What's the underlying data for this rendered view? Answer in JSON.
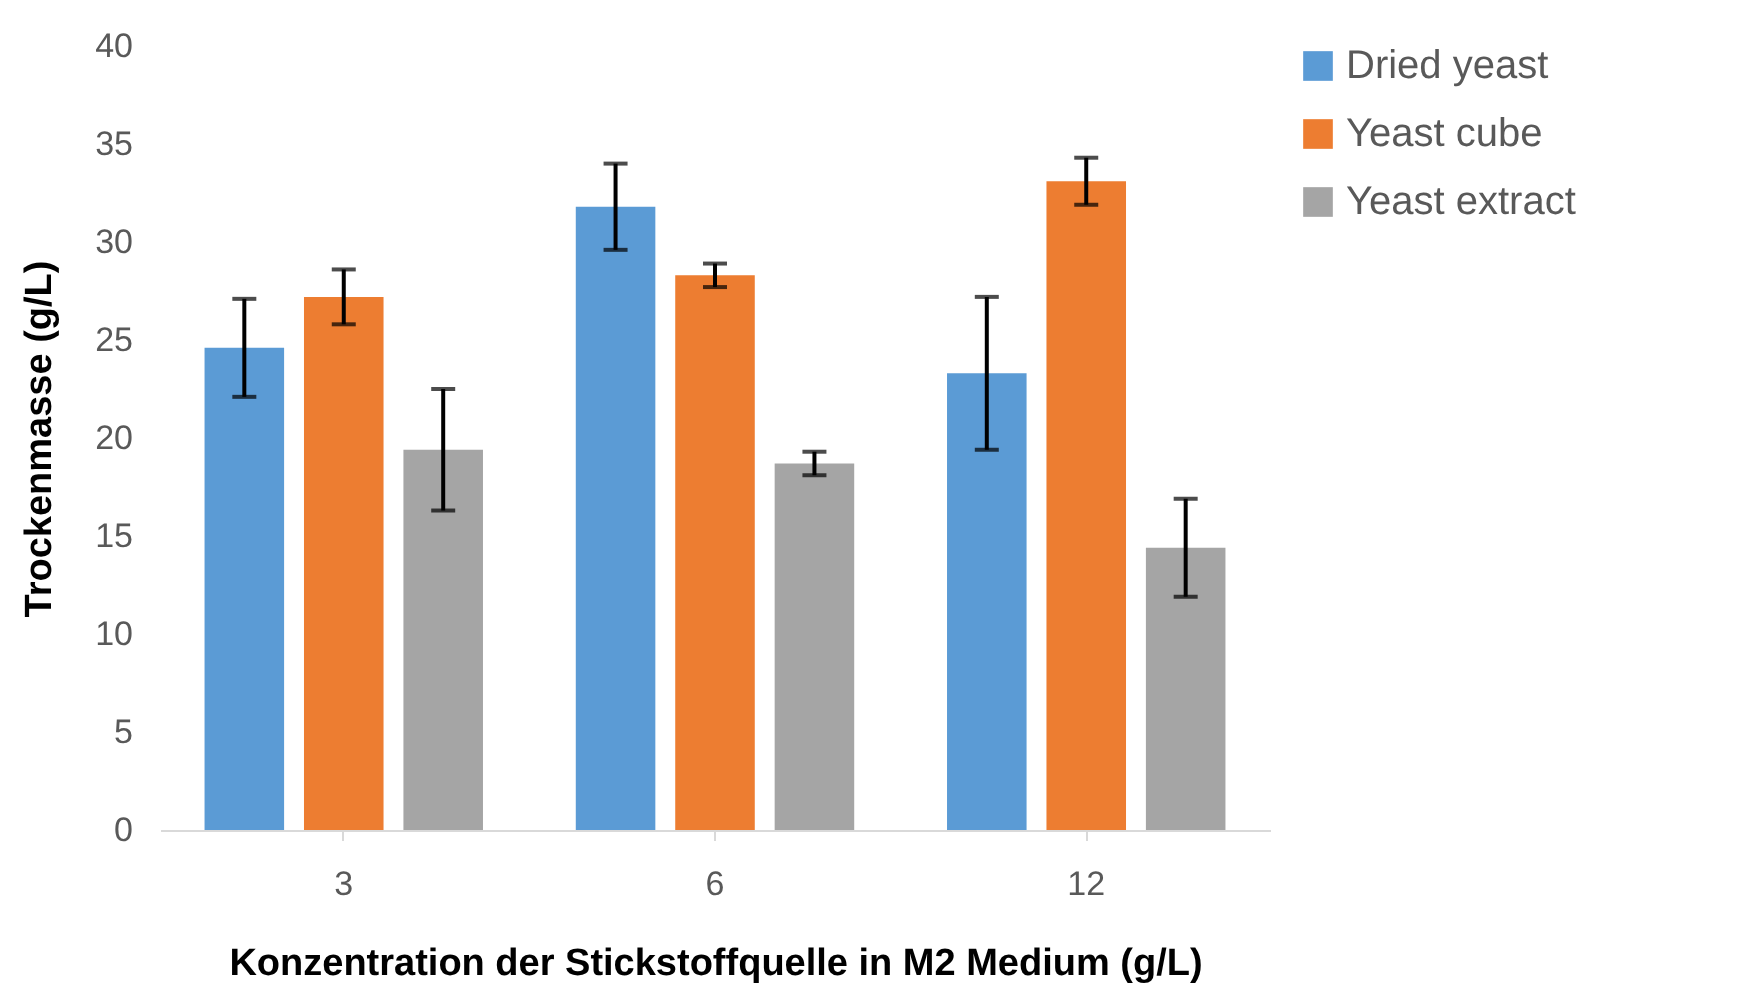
{
  "chart_data": {
    "type": "bar",
    "xlabel": "Konzentration der Stickstoffquelle in M2 Medium (g/L)",
    "ylabel": "Trockenmasse (g/L)",
    "categories": [
      "3",
      "6",
      "12"
    ],
    "series": [
      {
        "name": "Dried yeast",
        "color": "#5b9bd5",
        "values": [
          24.6,
          31.8,
          23.3
        ],
        "errors": [
          2.5,
          2.2,
          3.9
        ]
      },
      {
        "name": "Yeast cube",
        "color": "#ed7d31",
        "values": [
          27.2,
          28.3,
          33.1
        ],
        "errors": [
          1.4,
          0.6,
          1.2
        ]
      },
      {
        "name": "Yeast extract",
        "color": "#a5a5a5",
        "values": [
          19.4,
          18.7,
          14.4
        ],
        "errors": [
          3.1,
          0.6,
          2.5
        ]
      }
    ],
    "ylim": [
      0,
      40
    ],
    "yticks": [
      0,
      5,
      10,
      15,
      20,
      25,
      30,
      35,
      40
    ],
    "grid": false,
    "legend": "right"
  }
}
